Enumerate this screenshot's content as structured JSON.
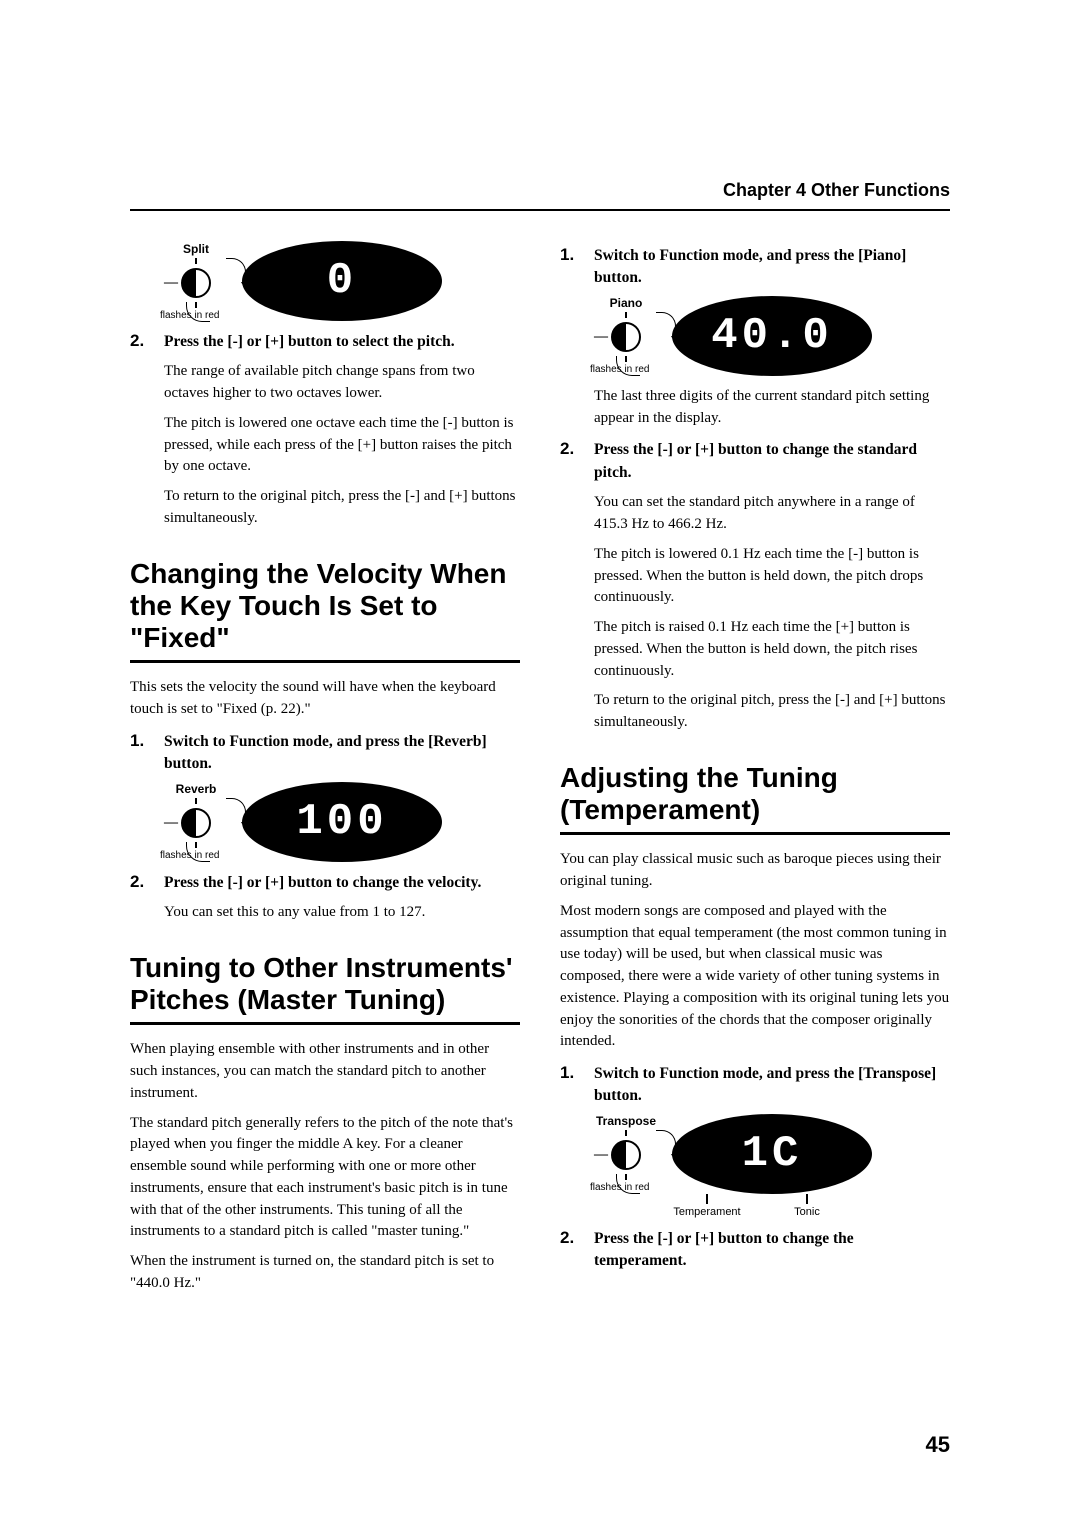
{
  "header": {
    "chapter": "Chapter 4 Other Functions"
  },
  "page_number": "45",
  "left": {
    "fig1": {
      "knob_label": "Split",
      "display_value": "0",
      "flashes": "flashes in red"
    },
    "sec1_steps": [
      {
        "num": "2.",
        "inst": "Press the [-] or [+] button to select the pitch.",
        "subs": [
          "The range of available pitch change spans from two octaves higher to two octaves lower.",
          "The pitch is lowered one octave each time the [-] button is pressed, while each press of the [+] button raises the pitch by one octave.",
          "To return to the original pitch, press the [-] and [+] buttons simultaneously."
        ]
      }
    ],
    "h2_velocity": "Changing the Velocity When the Key Touch Is Set to \"Fixed\"",
    "velocity_intro": "This sets the velocity the sound will have when the keyboard touch is set to \"Fixed (p. 22).\"",
    "velocity_steps": [
      {
        "num": "1.",
        "inst": "Switch to Function mode, and press the [Reverb] button."
      }
    ],
    "fig2": {
      "knob_label": "Reverb",
      "display_value": "100",
      "flashes": "flashes in red"
    },
    "velocity_steps2": [
      {
        "num": "2.",
        "inst": "Press the [-] or [+] button to change the velocity.",
        "subs": [
          "You can set this to any value from 1 to 127."
        ]
      }
    ],
    "h2_master": "Tuning to Other Instruments' Pitches (Master Tuning)",
    "master_paras": [
      "When playing ensemble with other instruments and in other such instances, you can match the standard pitch to another instrument.",
      "The standard pitch generally refers to the pitch of the note that's played when you finger the middle A key. For a cleaner ensemble sound while performing with one or more other instruments, ensure that each instrument's basic pitch is in tune with that of the other instruments. This tuning of all the instruments to a standard pitch is called \"master tuning.\"",
      "When the instrument is turned on, the standard pitch is set to \"440.0 Hz.\""
    ]
  },
  "right": {
    "master_steps": [
      {
        "num": "1.",
        "inst": "Switch to Function mode, and press the [Piano] button."
      }
    ],
    "fig3": {
      "knob_label": "Piano",
      "display_value": "40.0",
      "flashes": "flashes in red"
    },
    "master_after_fig": "The last three digits of the current standard pitch setting appear in the display.",
    "master_steps2": [
      {
        "num": "2.",
        "inst": "Press the [-] or [+] button to change the standard pitch.",
        "subs": [
          "You can set the standard pitch anywhere in a range of 415.3 Hz to 466.2 Hz.",
          "The pitch is lowered 0.1 Hz each time the [-] button is pressed. When the button is held down, the pitch drops continuously.",
          "The pitch is raised 0.1 Hz each time the [+] button is pressed. When the button is held down, the pitch rises continuously.",
          "To return to the original pitch, press the [-] and [+] buttons simultaneously."
        ]
      }
    ],
    "h2_temperament": "Adjusting the Tuning (Temperament)",
    "temperament_paras": [
      "You can play classical music such as baroque pieces using their original tuning.",
      "Most modern songs are composed and played with the assumption that equal temperament (the most common tuning in use today) will be used, but when classical music was composed, there were a wide variety of other tuning systems in existence. Playing a composition with its original tuning lets you enjoy the sonorities of the chords that the composer originally intended."
    ],
    "temperament_steps": [
      {
        "num": "1.",
        "inst": "Switch to Function mode, and press the [Transpose] button."
      }
    ],
    "fig4": {
      "knob_label": "Transpose",
      "display_value": "1C",
      "flashes": "flashes in red",
      "sub_labels": {
        "left": "Temperament",
        "right": "Tonic"
      }
    },
    "temperament_steps2": [
      {
        "num": "2.",
        "inst": "Press the [-] or [+] button to change the temperament."
      }
    ]
  }
}
